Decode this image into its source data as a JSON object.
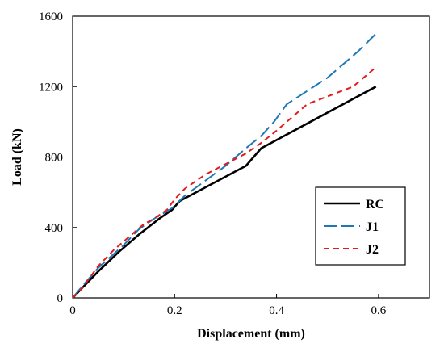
{
  "chart_data": {
    "type": "line",
    "title": "",
    "xlabel": "Displacement (mm)",
    "ylabel": "Load (kN)",
    "xlim": [
      0,
      0.7
    ],
    "ylim": [
      0,
      1600
    ],
    "x_ticks": [
      0,
      0.2,
      0.4,
      0.6
    ],
    "x_tick_labels": [
      "0",
      "0.2",
      "0.4",
      "0.6"
    ],
    "y_ticks": [
      0,
      400,
      800,
      1200,
      1600
    ],
    "y_tick_labels": [
      "0",
      "400",
      "800",
      "1200",
      "1600"
    ],
    "grid": false,
    "legend_position": "right",
    "series": [
      {
        "name": "RC",
        "color": "#000000",
        "dash": "solid",
        "points": [
          [
            0,
            0
          ],
          [
            0.02,
            60
          ],
          [
            0.05,
            150
          ],
          [
            0.09,
            260
          ],
          [
            0.13,
            360
          ],
          [
            0.17,
            450
          ],
          [
            0.195,
            500
          ],
          [
            0.21,
            550
          ],
          [
            0.34,
            750
          ],
          [
            0.37,
            850
          ],
          [
            0.595,
            1200
          ]
        ]
      },
      {
        "name": "J1",
        "color": "#1f77b4",
        "dash": "long-dash",
        "points": [
          [
            0,
            0
          ],
          [
            0.02,
            70
          ],
          [
            0.05,
            170
          ],
          [
            0.1,
            300
          ],
          [
            0.13,
            390
          ],
          [
            0.16,
            450
          ],
          [
            0.195,
            510
          ],
          [
            0.22,
            580
          ],
          [
            0.3,
            750
          ],
          [
            0.34,
            850
          ],
          [
            0.37,
            920
          ],
          [
            0.395,
            1000
          ],
          [
            0.42,
            1100
          ],
          [
            0.5,
            1250
          ],
          [
            0.56,
            1400
          ],
          [
            0.595,
            1500
          ]
        ]
      },
      {
        "name": "J2",
        "color": "#e41a1c",
        "dash": "short-dash",
        "points": [
          [
            0,
            0
          ],
          [
            0.02,
            60
          ],
          [
            0.05,
            180
          ],
          [
            0.08,
            270
          ],
          [
            0.1,
            320
          ],
          [
            0.14,
            420
          ],
          [
            0.16,
            450
          ],
          [
            0.185,
            500
          ],
          [
            0.2,
            560
          ],
          [
            0.22,
            620
          ],
          [
            0.26,
            700
          ],
          [
            0.3,
            760
          ],
          [
            0.34,
            820
          ],
          [
            0.37,
            880
          ],
          [
            0.4,
            950
          ],
          [
            0.46,
            1100
          ],
          [
            0.55,
            1200
          ],
          [
            0.595,
            1310
          ]
        ]
      }
    ],
    "legend": [
      "RC",
      "J1",
      "J2"
    ]
  }
}
